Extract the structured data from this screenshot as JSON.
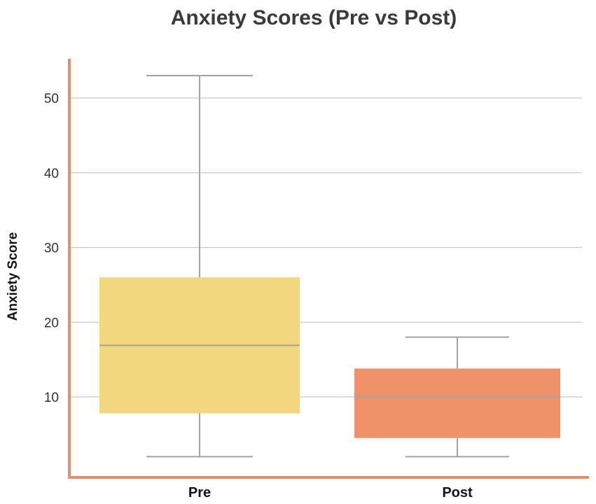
{
  "chart_data": {
    "type": "box",
    "title": "Anxiety Scores (Pre vs Post)",
    "xlabel": "",
    "ylabel": "Anxiety Score",
    "ylim": [
      -1,
      56
    ],
    "yticks": [
      10,
      20,
      30,
      40,
      50
    ],
    "grid": true,
    "categories": [
      "Pre",
      "Post"
    ],
    "series": [
      {
        "category": "Pre",
        "min": 2,
        "q1": 7.8,
        "median": 16.9,
        "q3": 26,
        "max": 53,
        "color": "#f3d77e"
      },
      {
        "category": "Post",
        "min": 2,
        "q1": 4.5,
        "median": 10,
        "q3": 13.8,
        "max": 18,
        "color": "#f0916c"
      }
    ]
  }
}
